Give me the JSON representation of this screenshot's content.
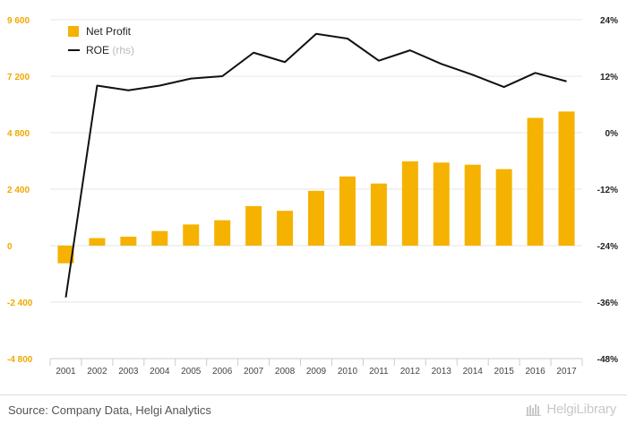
{
  "chart_data": {
    "type": "bar+line",
    "categories": [
      "2001",
      "2002",
      "2003",
      "2004",
      "2005",
      "2006",
      "2007",
      "2008",
      "2009",
      "2010",
      "2011",
      "2012",
      "2013",
      "2014",
      "2015",
      "2016",
      "2017"
    ],
    "series": [
      {
        "name": "Net Profit",
        "type": "bar",
        "axis": "left",
        "color": "#f5b200",
        "values": [
          -750,
          320,
          380,
          620,
          900,
          1080,
          1680,
          1480,
          2330,
          2940,
          2640,
          3580,
          3530,
          3440,
          3250,
          5430,
          5700
        ]
      },
      {
        "name": "ROE",
        "name_suffix": "(rhs)",
        "type": "line",
        "axis": "right",
        "color": "#111111",
        "values": [
          -35,
          10,
          9,
          10,
          11.5,
          12,
          17,
          15,
          21,
          20,
          15.3,
          17.5,
          14.6,
          12.3,
          9.7,
          12.7,
          10.9
        ]
      }
    ],
    "y_left": {
      "ticks": [
        -4800,
        -2400,
        0,
        2400,
        4800,
        7200,
        9600
      ],
      "tick_labels": [
        "-4 800",
        "-2 400",
        "0",
        "2 400",
        "4 800",
        "7 200",
        "9 600"
      ],
      "range": [
        -4800,
        9600
      ]
    },
    "y_right": {
      "ticks": [
        -48,
        -36,
        -24,
        -12,
        0,
        12,
        24
      ],
      "tick_labels": [
        "-48%",
        "-36%",
        "-24%",
        "-12%",
        "0%",
        "12%",
        "24%"
      ],
      "range": [
        -48,
        24
      ]
    },
    "grid": true,
    "legend_position": "top-left"
  },
  "footer": {
    "source": "Source: Company Data, Helgi Analytics",
    "brand": "HelgiLibrary"
  },
  "colors": {
    "bar": "#f5b200",
    "line": "#111111",
    "left_axis_text": "#f0a800",
    "grid": "#e6e6e6"
  }
}
